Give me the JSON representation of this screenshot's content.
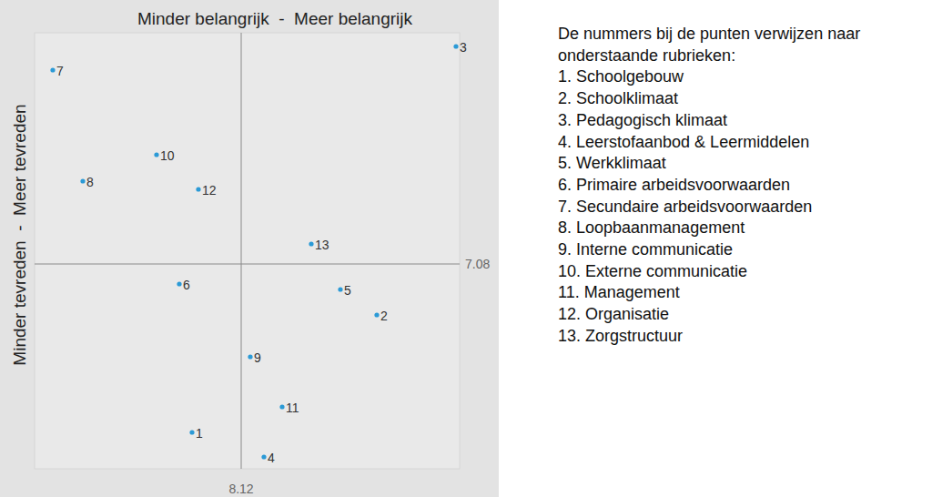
{
  "chart_data": {
    "type": "scatter",
    "x_label": "Minder belangrijk  -  Meer belangrijk",
    "y_label": "Minder tevreden  -  Meer tevreden",
    "x": [
      8.012,
      8.418,
      8.592,
      8.17,
      8.338,
      7.984,
      7.706,
      7.772,
      8.14,
      7.934,
      8.21,
      8.026,
      8.274
    ],
    "values": [
      6.34,
      6.856,
      8.036,
      6.232,
      6.968,
      6.992,
      7.932,
      7.444,
      6.672,
      7.56,
      6.452,
      7.408,
      7.168
    ],
    "point_labels": [
      "1",
      "2",
      "3",
      "4",
      "5",
      "6",
      "7",
      "8",
      "9",
      "10",
      "11",
      "12",
      "13"
    ],
    "color": "#2b9ad6",
    "marker": "circle",
    "xlim": [
      7.666,
      8.6
    ],
    "ylim": [
      6.18,
      8.096
    ],
    "xticks": [
      8.12
    ],
    "yticks": [
      7.08
    ],
    "grid": true,
    "annotations": {
      "title": "De nummers bij de punten verwijzen naar onderstaande rubrieken:",
      "items": [
        "1. Schoolgebouw",
        "2. Schoolklimaat",
        "3. Pedagogisch klimaat",
        "4. Leerstofaanbod & Leermiddelen",
        "5. Werkklimaat",
        "6. Primaire arbeidsvoorwaarden",
        "7. Secundaire arbeidsvoorwaarden",
        "8. Loopbaanmanagement",
        "9. Interne communicatie",
        "10. Externe communicatie",
        "11. Management",
        "12. Organisatie",
        "13. Zorgstructuur"
      ]
    }
  }
}
